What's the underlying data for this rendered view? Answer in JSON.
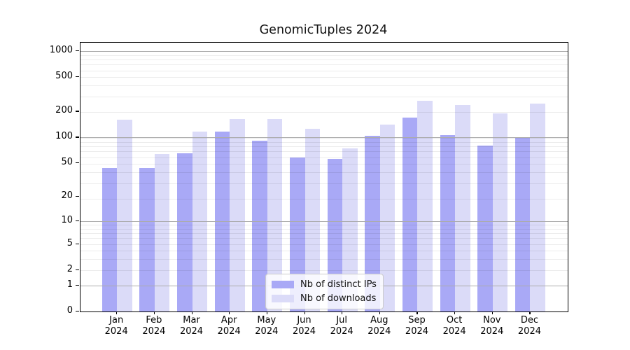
{
  "chart_data": {
    "type": "bar",
    "title": "GenomicTuples 2024",
    "year_label": "2024",
    "categories": [
      "Jan",
      "Feb",
      "Mar",
      "Apr",
      "May",
      "Jun",
      "Jul",
      "Aug",
      "Sep",
      "Oct",
      "Nov",
      "Dec"
    ],
    "series": [
      {
        "name": "Nb of distinct IPs",
        "color": "#a9a9f6",
        "values": [
          44,
          44,
          66,
          117,
          92,
          58,
          56,
          104,
          170,
          107,
          80,
          101
        ]
      },
      {
        "name": "Nb of downloads",
        "color": "#dbdbf8",
        "values": [
          161,
          64,
          117,
          163,
          165,
          126,
          75,
          142,
          268,
          237,
          190,
          249
        ]
      }
    ],
    "y_ticks": [
      0,
      1,
      2,
      5,
      10,
      20,
      50,
      100,
      200,
      500,
      1000
    ],
    "y_scale": "log10(1+value)",
    "ylim": [
      0,
      1250
    ],
    "grid": true,
    "legend_position": "inside-bottom-center",
    "colors": {
      "major_grid": "#ababab",
      "minor_grid": "#ececec",
      "axis": "#000000",
      "background": "#ffffff"
    }
  }
}
